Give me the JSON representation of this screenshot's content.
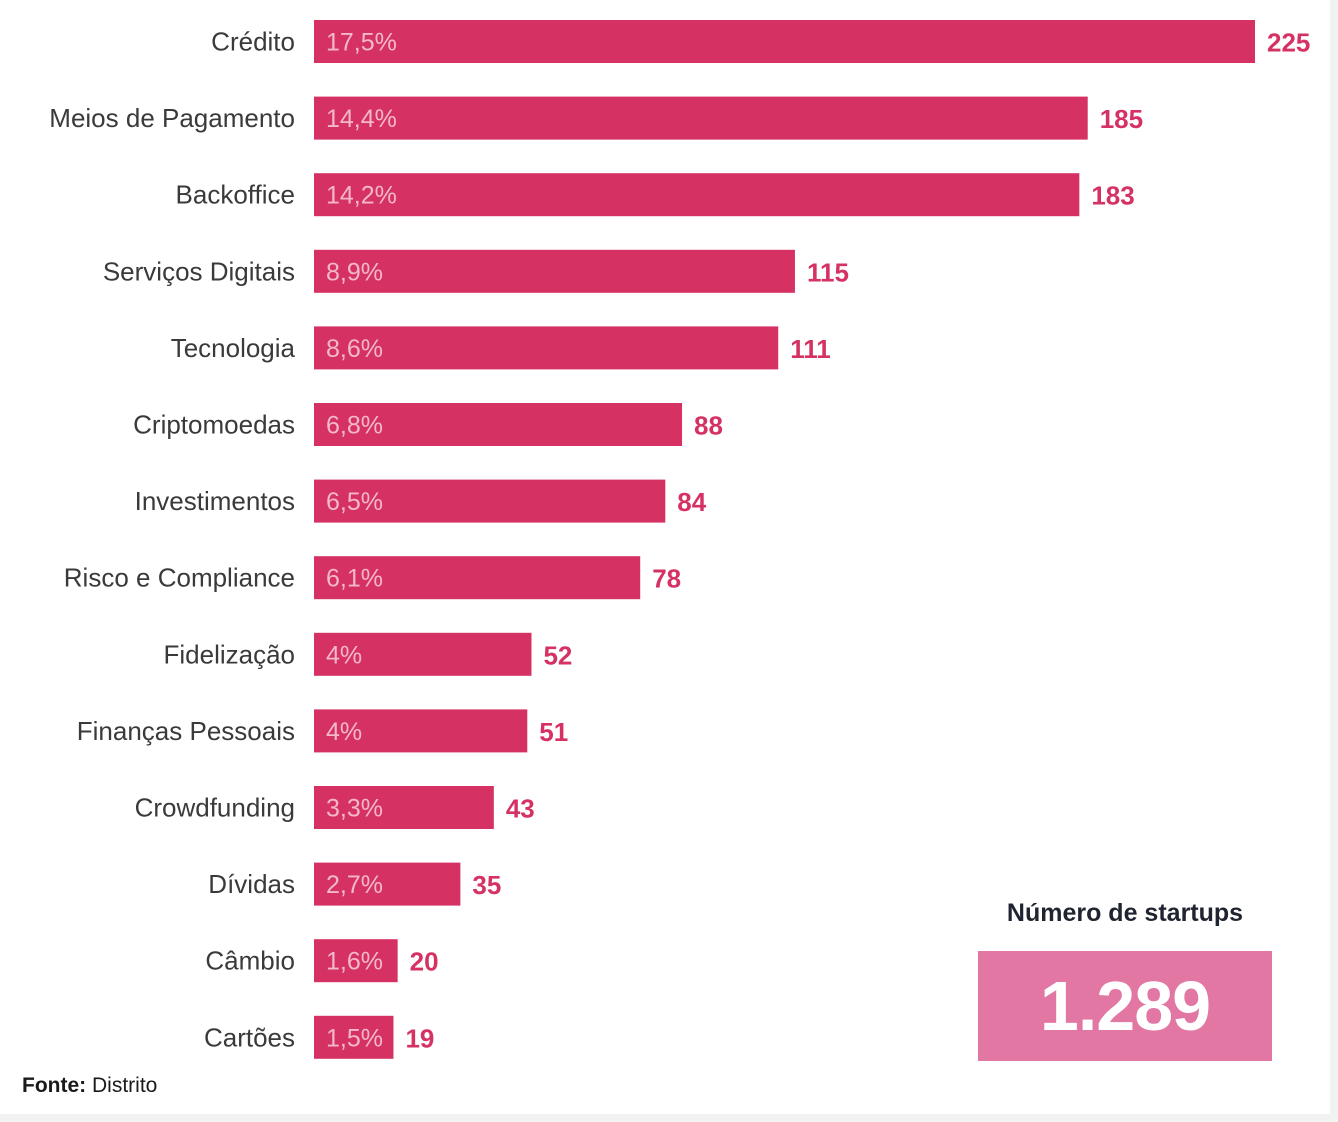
{
  "chart_data": {
    "type": "bar",
    "orientation": "horizontal",
    "categories": [
      "Crédito",
      "Meios de Pagamento",
      "Backoffice",
      "Serviços Digitais",
      "Tecnologia",
      "Criptomoedas",
      "Investimentos",
      "Risco e Compliance",
      "Fidelização",
      "Finanças Pessoais",
      "Crowdfunding",
      "Dívidas",
      "Câmbio",
      "Cartões"
    ],
    "values": [
      225,
      185,
      183,
      115,
      111,
      88,
      84,
      78,
      52,
      51,
      43,
      35,
      20,
      19
    ],
    "percent_labels": [
      "17,5%",
      "14,4%",
      "14,2%",
      "8,9%",
      "8,6%",
      "6,8%",
      "6,5%",
      "6,1%",
      "4%",
      "4%",
      "3,3%",
      "2,7%",
      "1,6%",
      "1,5%"
    ],
    "xlim": [
      0,
      225
    ],
    "grid": false,
    "bar_color": "#d63163",
    "value_label_color": "#d63163"
  },
  "summary": {
    "title": "Número de startups",
    "value": "1.289",
    "box_color": "#e277a3"
  },
  "source": {
    "label": "Fonte:",
    "text": "Distrito"
  }
}
